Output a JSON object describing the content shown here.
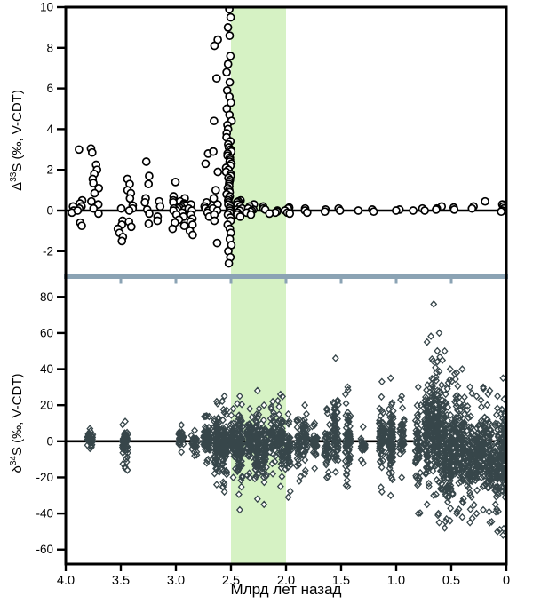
{
  "figure": {
    "xlabel": "Млрд лет назад",
    "x_tick_labels": [
      "4.0",
      "3.5",
      "3.0",
      "2.5",
      "2.0",
      "1.5",
      "1.0",
      "0.5",
      "0"
    ],
    "x_tick_values": [
      4.0,
      3.5,
      3.0,
      2.5,
      2.0,
      1.5,
      1.0,
      0.5,
      0
    ],
    "xlim": [
      4.0,
      0
    ],
    "highlight_band": {
      "from_ga": 2.5,
      "to_ga": 2.0,
      "color": "#d6f2c4"
    },
    "separator": {
      "color": "#8ba3b4",
      "tick_values": [
        3.5,
        3.0,
        2.5,
        2.0,
        1.5,
        1.0,
        0.5
      ]
    },
    "colors": {
      "background": "#ffffff",
      "axis": "#000000",
      "zero_line": "#000000",
      "circle_stroke": "#000000",
      "circle_fill": "#ffffff",
      "diamond_stroke": "#37464a",
      "diamond_fill": "#ffffff"
    }
  },
  "chart_data": [
    {
      "type": "scatter",
      "panel": "top",
      "marker": "open-circle",
      "ylabel": {
        "prefix": "Δ",
        "sup": "33",
        "rest": "S (‰, V-CDT)"
      },
      "ylim": [
        -3.1,
        10
      ],
      "yticks": [
        -2,
        0,
        2,
        4,
        6,
        8,
        10
      ],
      "zero_line": 0,
      "grid": false,
      "legend": "none",
      "clusters": [
        {
          "x": 3.93,
          "dx": 0.02,
          "values": [
            0.2,
            0.0,
            -0.1
          ]
        },
        {
          "x": 3.87,
          "dx": 0.03,
          "values": [
            3.0,
            0.5,
            0.35,
            0.2,
            0.1,
            0.0,
            -0.6,
            -0.75
          ]
        },
        {
          "x": 3.74,
          "dx": 0.04,
          "values": [
            3.05,
            2.85,
            2.25,
            2.0,
            1.8,
            1.55,
            1.35,
            1.1,
            0.85,
            0.45,
            0.3,
            0.1,
            -0.15
          ]
        },
        {
          "x": 3.51,
          "dx": 0.03,
          "values": [
            0.1,
            -0.5,
            -0.7,
            -0.9,
            -1.1,
            -1.3,
            -1.5
          ]
        },
        {
          "x": 3.42,
          "dx": 0.03,
          "values": [
            1.55,
            1.3,
            1.0,
            0.85,
            0.6,
            0.25,
            0.1,
            0.0,
            -0.55,
            -0.8
          ]
        },
        {
          "x": 3.26,
          "dx": 0.03,
          "values": [
            2.4,
            1.7,
            1.3,
            0.6,
            0.4,
            0.05,
            -0.15,
            -0.65
          ]
        },
        {
          "x": 3.16,
          "dx": 0.02,
          "values": [
            0.45,
            0.2,
            -0.3,
            -0.5
          ]
        },
        {
          "x": 3.0,
          "dx": 0.01,
          "values": [
            1.4
          ]
        },
        {
          "x": 2.97,
          "dx": 0.06,
          "values": [
            0.7,
            0.6,
            0.5,
            0.45,
            0.4,
            0.35,
            0.3,
            0.25,
            0.2,
            0.15,
            0.1,
            0.1,
            0.05,
            0.0,
            0.0,
            -0.1,
            -0.2,
            -0.3,
            -0.45,
            -0.6,
            -0.75,
            -0.9
          ]
        },
        {
          "x": 2.86,
          "dx": 0.03,
          "values": [
            0.3,
            0.1,
            0.0,
            -0.2,
            -0.4,
            -0.55,
            -0.7,
            -1.0,
            -1.2
          ]
        },
        {
          "x": 2.71,
          "dx": 0.03,
          "values": [
            2.8,
            2.3,
            0.4,
            0.2,
            0.1,
            0.0,
            -0.1,
            -0.3
          ]
        },
        {
          "x": 2.64,
          "dx": 0.025,
          "values": [
            8.4,
            8.1,
            6.5,
            4.4,
            2.9,
            1.9,
            1.0,
            0.6,
            0.3,
            0.1,
            0.0,
            -0.2,
            -0.5,
            -1.6
          ]
        },
        {
          "x": 2.52,
          "dx": 0.025,
          "values": [
            9.9,
            9.5,
            9.0,
            8.6,
            7.6,
            7.2,
            6.8,
            6.3,
            5.9,
            5.6,
            5.3,
            5.0,
            4.7,
            4.4,
            4.2,
            4.0,
            3.8,
            3.6,
            3.4,
            3.25,
            3.1,
            3.0,
            2.9,
            2.8,
            2.7,
            2.6,
            2.5,
            2.4,
            2.3,
            2.2,
            2.1,
            2.0,
            1.9,
            1.8,
            1.7,
            1.6,
            1.5,
            1.4,
            1.3,
            1.2,
            1.1,
            1.0,
            0.9,
            0.8,
            0.7,
            0.6,
            0.5,
            0.4,
            0.3,
            0.2,
            0.1,
            0.0,
            -0.1,
            -0.2,
            -0.35,
            -0.5,
            -0.7,
            -0.9,
            -1.1,
            -1.4,
            -1.7,
            -2.0,
            -2.3,
            -2.6
          ]
        },
        {
          "x": 2.42,
          "dx": 0.03,
          "values": [
            0.5,
            0.45,
            0.4,
            0.3,
            0.2,
            0.1,
            0.05,
            0.0,
            -0.1,
            -0.2,
            -0.3
          ]
        },
        {
          "x": 2.32,
          "dx": 0.04,
          "values": [
            0.3,
            0.2,
            0.1,
            0.05,
            0.0,
            -0.05,
            -0.1,
            -0.2
          ]
        },
        {
          "x": 2.15,
          "dx": 0.08,
          "values": [
            0.2,
            0.1,
            0.05,
            0.0,
            -0.05,
            -0.1,
            -0.15
          ]
        },
        {
          "x": 1.95,
          "dx": 0.06,
          "values": [
            0.15,
            0.1,
            0.0,
            -0.1,
            -0.15
          ]
        },
        {
          "x": 1.8,
          "dx": 0.04,
          "values": [
            0.1,
            0.0,
            -0.1
          ]
        },
        {
          "x": 1.65,
          "dx": 0.03,
          "values": [
            0.05,
            -0.05
          ]
        },
        {
          "x": 1.5,
          "dx": 0.03,
          "values": [
            0.1,
            0.0
          ]
        },
        {
          "x": 1.35,
          "dx": 0.02,
          "values": [
            0.0
          ]
        },
        {
          "x": 1.2,
          "dx": 0.02,
          "values": [
            0.05,
            -0.05
          ]
        },
        {
          "x": 0.98,
          "dx": 0.03,
          "values": [
            0.05,
            0.0
          ]
        },
        {
          "x": 0.86,
          "dx": 0.02,
          "values": [
            0.0
          ]
        },
        {
          "x": 0.77,
          "dx": 0.03,
          "values": [
            0.1,
            0.0
          ]
        },
        {
          "x": 0.62,
          "dx": 0.04,
          "values": [
            0.2,
            0.1,
            0.05
          ]
        },
        {
          "x": 0.45,
          "dx": 0.03,
          "values": [
            0.15,
            0.05
          ]
        },
        {
          "x": 0.3,
          "dx": 0.03,
          "values": [
            0.2,
            0.1
          ]
        },
        {
          "x": 0.2,
          "dx": 0.01,
          "values": [
            0.45
          ]
        },
        {
          "x": 0.05,
          "dx": 0.03,
          "values": [
            0.3,
            0.2,
            0.1,
            0.0,
            -0.05
          ]
        }
      ]
    },
    {
      "type": "scatter",
      "panel": "bottom",
      "marker": "open-diamond",
      "ylabel": {
        "prefix": "δ",
        "sup": "34",
        "rest": "S (‰, V-CDT)"
      },
      "ylim": [
        -68,
        88
      ],
      "yticks": [
        -60,
        -40,
        -20,
        0,
        20,
        40,
        60,
        80
      ],
      "zero_line": 0,
      "grid": false,
      "legend": "none",
      "clusters": [
        {
          "x": 3.78,
          "dx": 0.025,
          "min": -4,
          "max": 7,
          "mode": 1,
          "n": 45
        },
        {
          "x": 3.46,
          "dx": 0.025,
          "min": -15,
          "max": 11,
          "mode": -1,
          "n": 70
        },
        {
          "x": 3.44,
          "dx": 0.005,
          "min": -16,
          "max": -16,
          "mode": -16,
          "n": 1
        },
        {
          "x": 2.95,
          "dx": 0.025,
          "min": -6,
          "max": 9,
          "mode": 2,
          "n": 30
        },
        {
          "x": 2.83,
          "dx": 0.03,
          "min": -8,
          "max": 6,
          "mode": -1,
          "n": 25
        },
        {
          "x": 2.72,
          "dx": 0.03,
          "min": -12,
          "max": 14,
          "mode": 1,
          "n": 60
        },
        {
          "x": 2.63,
          "dx": 0.025,
          "min": -24,
          "max": 22,
          "mode": 0,
          "n": 90
        },
        {
          "x": 2.56,
          "dx": 0.025,
          "min": -28,
          "max": 25,
          "mode": -2,
          "n": 110
        },
        {
          "x": 2.48,
          "dx": 0.025,
          "min": -20,
          "max": 18,
          "mode": 0,
          "n": 70
        },
        {
          "x": 2.42,
          "dx": 0.025,
          "min": -38,
          "max": 25,
          "mode": -3,
          "n": 100
        },
        {
          "x": 2.33,
          "dx": 0.025,
          "min": -20,
          "max": 18,
          "mode": 2,
          "n": 70
        },
        {
          "x": 2.26,
          "dx": 0.025,
          "min": -32,
          "max": 28,
          "mode": -2,
          "n": 90
        },
        {
          "x": 2.2,
          "dx": 0.025,
          "min": -35,
          "max": 20,
          "mode": -5,
          "n": 70
        },
        {
          "x": 2.12,
          "dx": 0.025,
          "min": -18,
          "max": 22,
          "mode": 3,
          "n": 50
        },
        {
          "x": 2.05,
          "dx": 0.025,
          "min": -25,
          "max": 26,
          "mode": 0,
          "n": 80
        },
        {
          "x": 1.98,
          "dx": 0.025,
          "min": -31,
          "max": 15,
          "mode": -4,
          "n": 50
        },
        {
          "x": 1.88,
          "dx": 0.025,
          "min": -22,
          "max": 12,
          "mode": -3,
          "n": 40
        },
        {
          "x": 1.83,
          "dx": 0.025,
          "min": -18,
          "max": 20,
          "mode": 2,
          "n": 45
        },
        {
          "x": 1.74,
          "dx": 0.025,
          "min": -15,
          "max": 10,
          "mode": 0,
          "n": 30
        },
        {
          "x": 1.63,
          "dx": 0.025,
          "min": -20,
          "max": 18,
          "mode": -2,
          "n": 45
        },
        {
          "x": 1.55,
          "dx": 0.025,
          "min": -17,
          "max": 46,
          "mode": 5,
          "n": 70
        },
        {
          "x": 1.44,
          "dx": 0.025,
          "min": -25,
          "max": 30,
          "mode": 0,
          "n": 80
        },
        {
          "x": 1.3,
          "dx": 0.02,
          "min": -12,
          "max": 8,
          "mode": -2,
          "n": 20
        },
        {
          "x": 1.13,
          "dx": 0.025,
          "min": -28,
          "max": 33,
          "mode": 2,
          "n": 60
        },
        {
          "x": 1.05,
          "dx": 0.025,
          "min": -30,
          "max": 35,
          "mode": 0,
          "n": 90
        },
        {
          "x": 0.95,
          "dx": 0.025,
          "min": -20,
          "max": 25,
          "mode": 3,
          "n": 40
        },
        {
          "x": 0.8,
          "dx": 0.025,
          "min": -40,
          "max": 30,
          "mode": -5,
          "n": 60
        },
        {
          "x": 0.72,
          "dx": 0.025,
          "min": -35,
          "max": 55,
          "mode": 5,
          "n": 90
        },
        {
          "x": 0.66,
          "dx": 0.025,
          "min": -30,
          "max": 76,
          "mode": 10,
          "n": 110
        },
        {
          "x": 0.61,
          "dx": 0.025,
          "min": -45,
          "max": 60,
          "mode": 5,
          "n": 130
        },
        {
          "x": 0.56,
          "dx": 0.025,
          "min": -48,
          "max": 50,
          "mode": -5,
          "n": 110
        },
        {
          "x": 0.51,
          "dx": 0.025,
          "min": -44,
          "max": 40,
          "mode": -8,
          "n": 100
        },
        {
          "x": 0.45,
          "dx": 0.025,
          "min": -40,
          "max": 38,
          "mode": 0,
          "n": 90
        },
        {
          "x": 0.4,
          "dx": 0.025,
          "min": -42,
          "max": 40,
          "mode": -5,
          "n": 90
        },
        {
          "x": 0.33,
          "dx": 0.025,
          "min": -45,
          "max": 30,
          "mode": -10,
          "n": 80
        },
        {
          "x": 0.27,
          "dx": 0.025,
          "min": -40,
          "max": 25,
          "mode": -8,
          "n": 70
        },
        {
          "x": 0.21,
          "dx": 0.025,
          "min": -38,
          "max": 30,
          "mode": -5,
          "n": 70
        },
        {
          "x": 0.15,
          "dx": 0.025,
          "min": -45,
          "max": 28,
          "mode": -10,
          "n": 80
        },
        {
          "x": 0.08,
          "dx": 0.025,
          "min": -50,
          "max": 25,
          "mode": -12,
          "n": 80
        },
        {
          "x": 0.03,
          "dx": 0.02,
          "min": -52,
          "max": 35,
          "mode": -8,
          "n": 90
        }
      ]
    }
  ]
}
